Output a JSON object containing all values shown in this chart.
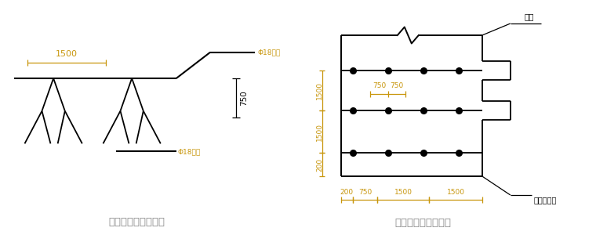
{
  "bg_color": "#ffffff",
  "line_color": "#000000",
  "dim_color": "#c8960c",
  "title1": "马登加工形状示意图",
  "title2": "马登平面布置示意图",
  "label_top_rebar": "Φ18钉筋",
  "label_bot_rebar": "Φ18钉筋",
  "label_750": "750",
  "label_zhidian": "支点",
  "label_jichu": "基础外边线",
  "dim_1500": "1500",
  "dim_750a": "750",
  "dim_750b": "750",
  "dim_200": "200",
  "dim_750": "750",
  "dim_1500a": "1500",
  "dim_1500b": "1500",
  "dim_v1500a": "1500",
  "dim_v1500b": "1500",
  "dim_v200": "200"
}
